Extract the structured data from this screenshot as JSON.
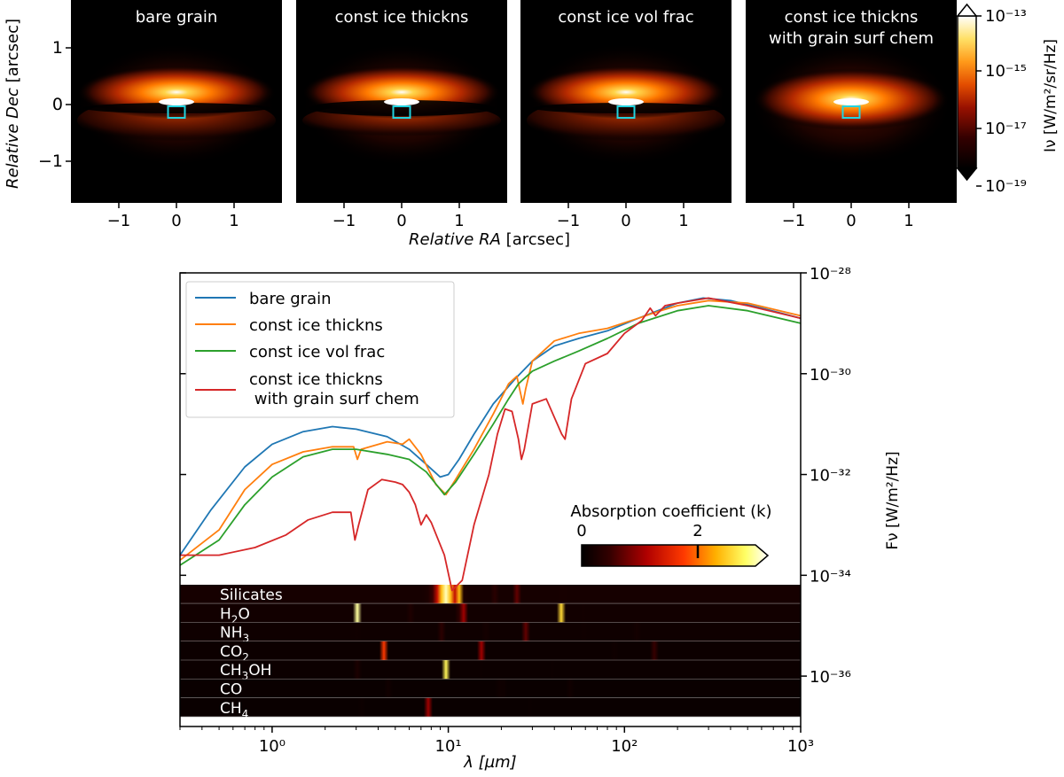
{
  "images": {
    "panels": [
      {
        "title_lines": [
          "bare grain"
        ],
        "style": "split"
      },
      {
        "title_lines": [
          "const ice thickns"
        ],
        "style": "split_dark"
      },
      {
        "title_lines": [
          "const ice vol frac"
        ],
        "style": "split"
      },
      {
        "title_lines": [
          "const ice thickns",
          "with grain surf chem"
        ],
        "style": "single"
      }
    ],
    "ra_ticks": [
      "−1",
      "0",
      "1"
    ],
    "dec_ticks": [
      "1",
      "0",
      "−1"
    ],
    "ylabel_italic": "Relative Dec",
    "ylabel_unit": "[arcsec]",
    "xlabel_italic": "Relative RA",
    "xlabel_unit": "[arcsec]",
    "colorbar": {
      "ticks": [
        "10⁻¹³",
        "10⁻¹⁵",
        "10⁻¹⁷",
        "10⁻¹⁹"
      ],
      "label": "Iν [W/m²/sr/Hz]"
    },
    "cmap": "afmhot",
    "box_color": "#22d3e0"
  },
  "chart_data": {
    "type": "line",
    "x_scale": "log",
    "y_scale": "log",
    "xlim": [
      0.3,
      1000
    ],
    "ylim": [
      1e-37,
      1e-28
    ],
    "xlabel": "λ [µm]",
    "ylabel": "Fν [W/m²/Hz]",
    "x_ticks": [
      "10⁰",
      "10¹",
      "10²",
      "10³"
    ],
    "y_ticks": [
      "10⁻²⁸",
      "10⁻³⁰",
      "10⁻³²",
      "10⁻³⁴",
      "10⁻³⁶"
    ],
    "legend_position": "top-left",
    "series": [
      {
        "name": "bare grain",
        "color": "#1f77b4",
        "points": [
          [
            0.3,
            -33.6
          ],
          [
            0.45,
            -32.7
          ],
          [
            0.7,
            -31.85
          ],
          [
            1.0,
            -31.4
          ],
          [
            1.5,
            -31.15
          ],
          [
            2.2,
            -31.05
          ],
          [
            3.0,
            -31.1
          ],
          [
            4.5,
            -31.25
          ],
          [
            6.0,
            -31.5
          ],
          [
            7.5,
            -31.8
          ],
          [
            9.0,
            -32.05
          ],
          [
            10.0,
            -32.0
          ],
          [
            11.5,
            -31.7
          ],
          [
            14,
            -31.2
          ],
          [
            18,
            -30.6
          ],
          [
            24,
            -30.1
          ],
          [
            30,
            -29.75
          ],
          [
            40,
            -29.45
          ],
          [
            55,
            -29.3
          ],
          [
            80,
            -29.15
          ],
          [
            120,
            -28.9
          ],
          [
            200,
            -28.6
          ],
          [
            280,
            -28.5
          ],
          [
            400,
            -28.55
          ],
          [
            600,
            -28.7
          ],
          [
            1000,
            -28.9
          ]
        ]
      },
      {
        "name": "const ice thickns",
        "color": "#ff7f0e",
        "points": [
          [
            0.3,
            -33.7
          ],
          [
            0.5,
            -33.1
          ],
          [
            0.7,
            -32.3
          ],
          [
            1.0,
            -31.8
          ],
          [
            1.5,
            -31.55
          ],
          [
            2.2,
            -31.45
          ],
          [
            2.9,
            -31.45
          ],
          [
            3.05,
            -31.7
          ],
          [
            3.2,
            -31.5
          ],
          [
            4.5,
            -31.35
          ],
          [
            5.5,
            -31.4
          ],
          [
            6.0,
            -31.3
          ],
          [
            7.0,
            -31.6
          ],
          [
            8.5,
            -32.2
          ],
          [
            9.7,
            -32.4
          ],
          [
            11,
            -32.1
          ],
          [
            14,
            -31.5
          ],
          [
            18,
            -30.8
          ],
          [
            22,
            -30.2
          ],
          [
            24.5,
            -30.05
          ],
          [
            26.5,
            -30.6
          ],
          [
            27.5,
            -30.3
          ],
          [
            30,
            -29.75
          ],
          [
            40,
            -29.35
          ],
          [
            55,
            -29.2
          ],
          [
            80,
            -29.1
          ],
          [
            120,
            -28.9
          ],
          [
            160,
            -28.75
          ],
          [
            200,
            -28.65
          ],
          [
            300,
            -28.55
          ],
          [
            500,
            -28.6
          ],
          [
            1000,
            -28.85
          ]
        ]
      },
      {
        "name": "const ice vol frac",
        "color": "#2ca02c",
        "points": [
          [
            0.3,
            -33.8
          ],
          [
            0.5,
            -33.3
          ],
          [
            0.7,
            -32.6
          ],
          [
            1.0,
            -32.05
          ],
          [
            1.5,
            -31.65
          ],
          [
            2.2,
            -31.5
          ],
          [
            3.0,
            -31.5
          ],
          [
            4.5,
            -31.6
          ],
          [
            6.0,
            -31.7
          ],
          [
            7.5,
            -31.95
          ],
          [
            9.5,
            -32.4
          ],
          [
            11,
            -32.15
          ],
          [
            14,
            -31.6
          ],
          [
            18,
            -31.0
          ],
          [
            22,
            -30.5
          ],
          [
            25,
            -30.2
          ],
          [
            30,
            -29.95
          ],
          [
            40,
            -29.75
          ],
          [
            55,
            -29.55
          ],
          [
            80,
            -29.3
          ],
          [
            120,
            -29.0
          ],
          [
            200,
            -28.75
          ],
          [
            300,
            -28.65
          ],
          [
            500,
            -28.75
          ],
          [
            1000,
            -29.0
          ]
        ]
      },
      {
        "name": "const ice thickns\n with grain surf chem",
        "color": "#d62728",
        "points": [
          [
            0.3,
            -33.6
          ],
          [
            0.5,
            -33.6
          ],
          [
            0.8,
            -33.45
          ],
          [
            1.2,
            -33.2
          ],
          [
            1.6,
            -32.9
          ],
          [
            2.2,
            -32.75
          ],
          [
            2.8,
            -32.75
          ],
          [
            2.95,
            -33.3
          ],
          [
            3.1,
            -33.0
          ],
          [
            3.5,
            -32.3
          ],
          [
            4.2,
            -32.1
          ],
          [
            5.0,
            -32.15
          ],
          [
            5.5,
            -32.2
          ],
          [
            6.0,
            -32.35
          ],
          [
            6.5,
            -32.6
          ],
          [
            7.0,
            -33.0
          ],
          [
            7.5,
            -32.8
          ],
          [
            8.0,
            -32.95
          ],
          [
            9.5,
            -33.6
          ],
          [
            10.5,
            -34.3
          ],
          [
            12,
            -34.1
          ],
          [
            14,
            -33.0
          ],
          [
            17,
            -32.0
          ],
          [
            19,
            -31.2
          ],
          [
            21,
            -30.7
          ],
          [
            23,
            -30.75
          ],
          [
            25,
            -31.3
          ],
          [
            26,
            -31.7
          ],
          [
            27,
            -31.5
          ],
          [
            30,
            -30.6
          ],
          [
            36,
            -30.5
          ],
          [
            44,
            -31.2
          ],
          [
            46,
            -31.3
          ],
          [
            50,
            -30.5
          ],
          [
            60,
            -29.8
          ],
          [
            80,
            -29.6
          ],
          [
            100,
            -29.2
          ],
          [
            125,
            -28.95
          ],
          [
            140,
            -28.7
          ],
          [
            150,
            -28.85
          ],
          [
            170,
            -28.65
          ],
          [
            200,
            -28.6
          ],
          [
            300,
            -28.5
          ],
          [
            500,
            -28.65
          ],
          [
            1000,
            -28.9
          ]
        ]
      }
    ],
    "absorption_colorbar": {
      "title": "Absorption coefficient (k)",
      "ticks": [
        "0",
        "2"
      ]
    },
    "absorption_bands": [
      {
        "species": "Silicates",
        "label_main": "Silicates",
        "label_sub": "",
        "label_tail": "",
        "baseline": 0.22,
        "features": [
          [
            9.7,
            0.8,
            3
          ],
          [
            11.5,
            0.1,
            2.2
          ],
          [
            18,
            0.09,
            1.8
          ],
          [
            25,
            0.3,
            2.0
          ],
          [
            45,
            0.4,
            1.2
          ]
        ]
      },
      {
        "species": "H2O",
        "label_main": "H",
        "label_sub": "2",
        "label_tail": "O",
        "baseline": 0.18,
        "features": [
          [
            3.05,
            0.02,
            3.0
          ],
          [
            6.0,
            0.04,
            0.7
          ],
          [
            12,
            0.25,
            1.4
          ],
          [
            44,
            0.06,
            3.0
          ],
          [
            60,
            0.25,
            0.6
          ]
        ]
      },
      {
        "species": "NH3",
        "label_main": "NH",
        "label_sub": "3",
        "label_tail": "",
        "baseline": 0.15,
        "features": [
          [
            2.96,
            0.01,
            2.0
          ],
          [
            9.35,
            0.01,
            3.5
          ],
          [
            16,
            0.1,
            0.9
          ],
          [
            28,
            0.04,
            3.2
          ],
          [
            120,
            0.04,
            1.4
          ],
          [
            60,
            0.2,
            0.5
          ]
        ]
      },
      {
        "species": "CO2",
        "label_main": "CO",
        "label_sub": "2",
        "label_tail": "",
        "baseline": 0.12,
        "features": [
          [
            4.27,
            0.006,
            3.0
          ],
          [
            15.2,
            0.008,
            3.5
          ],
          [
            90,
            0.05,
            1.2
          ],
          [
            150,
            0.04,
            1.5
          ]
        ]
      },
      {
        "species": "CH3OH",
        "label_main": "CH",
        "label_sub": "3",
        "label_tail": "OH",
        "baseline": 0.12,
        "features": [
          [
            3.1,
            0.03,
            0.8
          ],
          [
            9.7,
            0.01,
            2.8
          ],
          [
            15,
            0.12,
            0.6
          ],
          [
            40,
            0.15,
            0.5
          ]
        ]
      },
      {
        "species": "CO",
        "label_main": "CO",
        "label_sub": "",
        "label_tail": "",
        "baseline": 0.1,
        "features": [
          [
            4.67,
            0.006,
            1.2
          ],
          [
            20,
            0.3,
            0.3
          ],
          [
            50,
            0.3,
            0.35
          ]
        ]
      },
      {
        "species": "CH4",
        "label_main": "CH",
        "label_sub": "4",
        "label_tail": "",
        "baseline": 0.1,
        "features": [
          [
            3.3,
            0.01,
            0.6
          ],
          [
            7.7,
            0.008,
            1.0
          ],
          [
            30,
            0.3,
            0.3
          ]
        ]
      }
    ]
  }
}
